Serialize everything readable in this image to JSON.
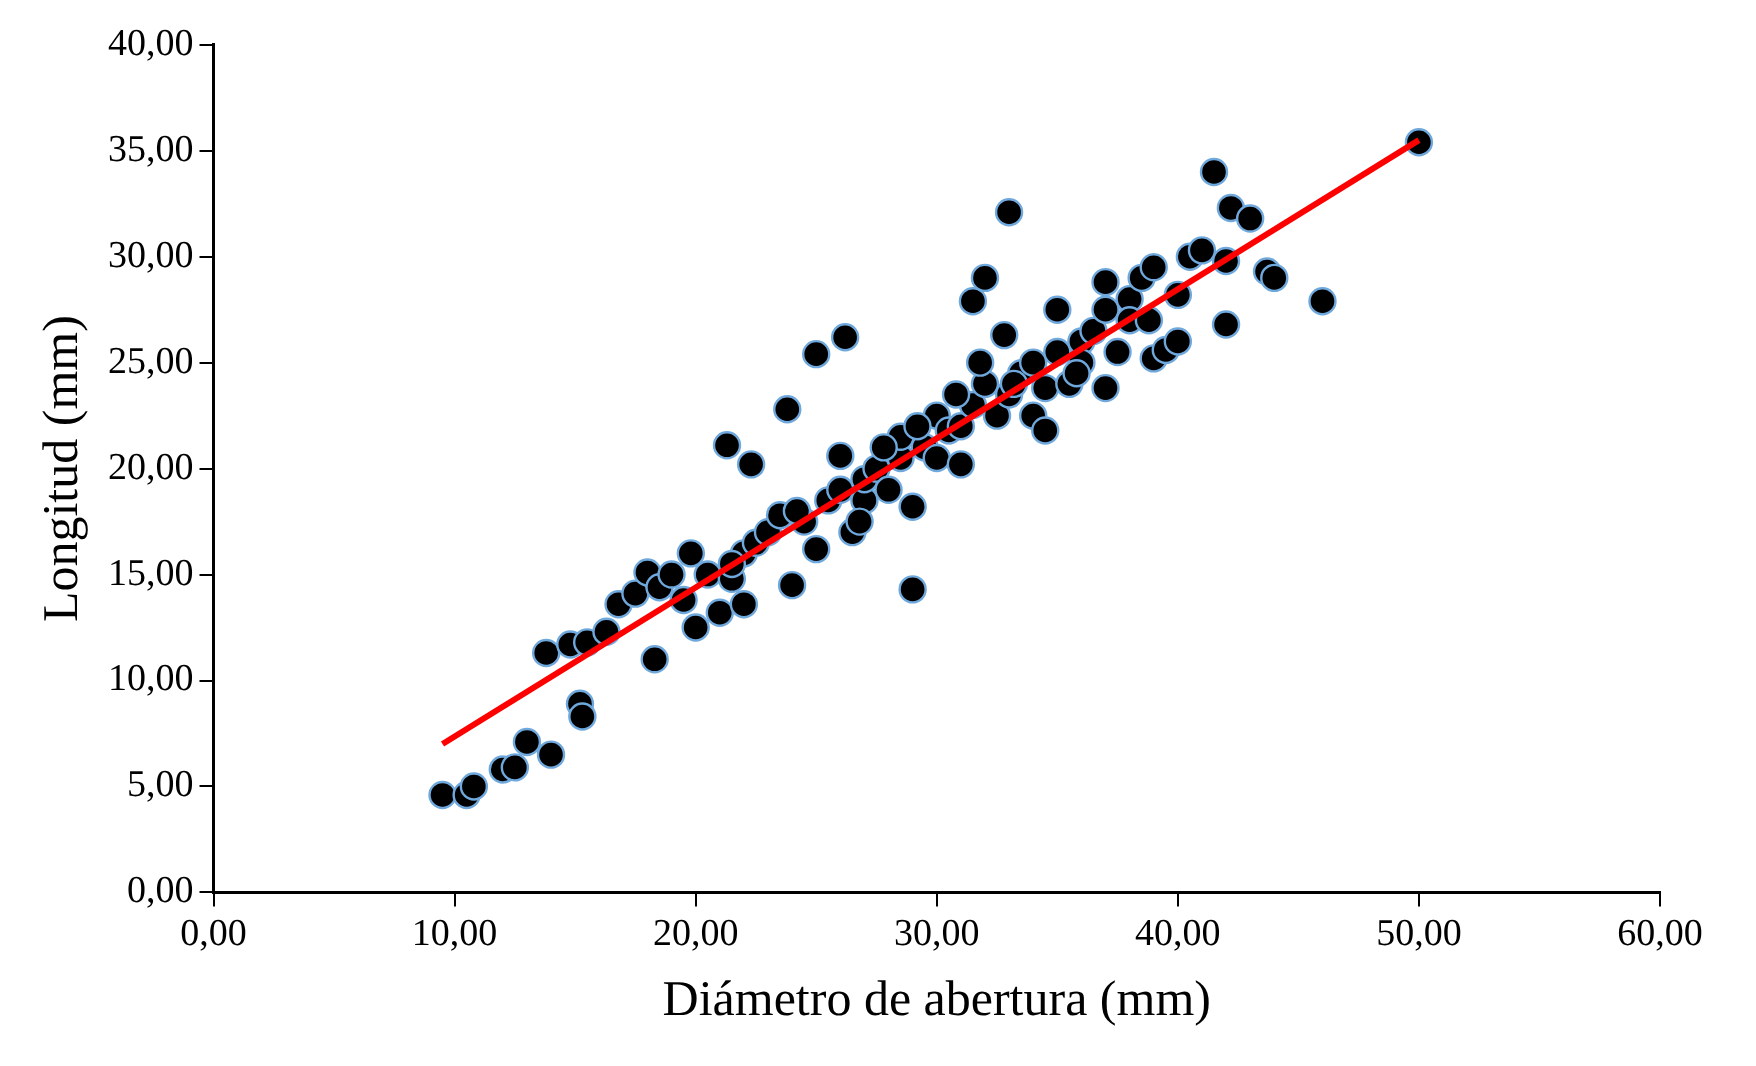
{
  "chart_data": {
    "type": "scatter",
    "xlabel": "Diámetro de abertura (mm)",
    "ylabel": "Longitud (mm)",
    "xlim": [
      0,
      60
    ],
    "ylim": [
      0,
      40
    ],
    "xticks": [
      {
        "value": 0,
        "label": "0,00"
      },
      {
        "value": 10,
        "label": "10,00"
      },
      {
        "value": 20,
        "label": "20,00"
      },
      {
        "value": 30,
        "label": "30,00"
      },
      {
        "value": 40,
        "label": "40,00"
      },
      {
        "value": 50,
        "label": "50,00"
      },
      {
        "value": 60,
        "label": "60,00"
      }
    ],
    "yticks": [
      {
        "value": 0,
        "label": "0,00"
      },
      {
        "value": 5,
        "label": "5,00"
      },
      {
        "value": 10,
        "label": "10,00"
      },
      {
        "value": 15,
        "label": "15,00"
      },
      {
        "value": 20,
        "label": "20,00"
      },
      {
        "value": 25,
        "label": "25,00"
      },
      {
        "value": 30,
        "label": "30,00"
      },
      {
        "value": 35,
        "label": "35,00"
      },
      {
        "value": 40,
        "label": "40,00"
      }
    ],
    "grid": false,
    "legend": false,
    "marker": "circle",
    "series": [
      {
        "type": "scatter",
        "color": "#000000",
        "x": [
          9.5,
          10.5,
          10.8,
          12,
          12.5,
          13,
          14,
          15.2,
          15.3,
          13.8,
          14.8,
          15.5,
          16.3,
          16.8,
          17.5,
          18,
          18.3,
          18.5,
          19.5,
          19.8,
          20,
          20.5,
          21,
          21.5,
          21.3,
          22,
          22,
          22.5,
          22.3,
          23,
          23.5,
          24,
          23.8,
          24.5,
          25,
          25,
          25.5,
          26,
          26.2,
          26,
          26.5,
          27,
          27,
          27.5,
          28,
          28.5,
          28.5,
          29,
          29,
          29.5,
          30,
          30,
          30.5,
          31,
          31,
          31.5,
          31.5,
          32,
          32,
          32.5,
          32.8,
          33,
          33,
          33.5,
          34,
          34,
          34.5,
          34.5,
          35,
          35,
          35.5,
          36,
          36.5,
          37,
          37,
          37,
          37.5,
          38,
          38,
          38.5,
          39,
          39,
          39.5,
          40,
          40,
          40.5,
          41,
          41.5,
          42,
          42,
          42.2,
          43,
          43.7,
          44,
          46,
          50,
          24.2,
          27.8,
          29.2,
          30.8,
          33.2,
          36,
          38.8,
          26.8,
          21.5,
          19,
          35.8,
          31.8
        ],
        "values": [
          4.6,
          4.6,
          5.0,
          5.8,
          5.9,
          7.1,
          6.5,
          8.9,
          8.3,
          11.3,
          11.7,
          11.8,
          12.3,
          13.6,
          14.1,
          15.1,
          11.0,
          14.4,
          13.8,
          16.0,
          12.5,
          15.0,
          13.2,
          14.8,
          21.1,
          13.6,
          16.0,
          16.5,
          20.2,
          17.0,
          17.8,
          14.5,
          22.8,
          17.5,
          25.4,
          16.2,
          18.5,
          19.0,
          26.2,
          20.6,
          17.0,
          18.5,
          19.5,
          20.0,
          19.0,
          20.5,
          21.5,
          18.2,
          14.3,
          21.0,
          20.5,
          22.5,
          21.8,
          22.0,
          20.2,
          27.9,
          23.0,
          24.0,
          29.0,
          22.5,
          26.3,
          32.1,
          23.5,
          24.5,
          25.0,
          22.5,
          21.8,
          23.8,
          25.5,
          27.5,
          24.0,
          26.0,
          26.5,
          23.8,
          27.5,
          28.8,
          25.5,
          28.0,
          27.0,
          29.0,
          25.2,
          29.5,
          25.6,
          28.2,
          26.0,
          30.0,
          30.3,
          34.0,
          29.8,
          26.8,
          32.3,
          31.8,
          29.3,
          29.0,
          27.9,
          35.4,
          18.0,
          21.0,
          22.0,
          23.5,
          24.0,
          25.0,
          27.0,
          17.5,
          15.5,
          15.0,
          24.5,
          25.0
        ]
      },
      {
        "type": "line",
        "color": "#ff0000",
        "x": [
          9.5,
          50
        ],
        "values": [
          7.0,
          35.5
        ],
        "marker": "none",
        "line_style": "solid"
      }
    ]
  }
}
